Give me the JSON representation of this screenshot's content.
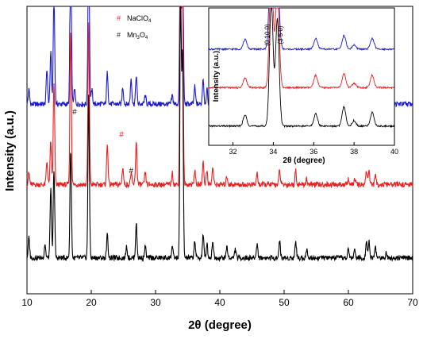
{
  "chart_data": [
    {
      "type": "line",
      "xlabel": "2θ (degree)",
      "ylabel": "Intensity (a.u.)",
      "xlim": [
        10,
        70
      ],
      "x_ticks": [
        "10",
        "20",
        "30",
        "40",
        "50",
        "60",
        "70"
      ],
      "y_ticks_shown": false,
      "grid": false,
      "legend": {
        "placement": "top-left",
        "entries": [
          {
            "marker": "#",
            "color": "#ff2020",
            "label": "NaClO",
            "sub": "4"
          },
          {
            "marker": "#",
            "color": "#222222",
            "label": "Mn",
            "sub1": "3",
            "mid": "O",
            "sub2": "4"
          }
        ]
      },
      "annotations": [
        {
          "text": "#",
          "x": 17.4,
          "y": 0.625,
          "color": "#222222"
        },
        {
          "text": "#",
          "x": 24.7,
          "y": 0.545,
          "color": "#ff2020"
        },
        {
          "text": "#",
          "x": 26.2,
          "y": 0.42,
          "color": "#222222"
        }
      ],
      "series": [
        {
          "color": "#1a1acc",
          "offset": 0.66,
          "peaks": [
            [
              10.3,
              0.05
            ],
            [
              13.1,
              0.12
            ],
            [
              13.7,
              0.18
            ],
            [
              14.2,
              0.38
            ],
            [
              16.8,
              0.62
            ],
            [
              17.4,
              0.05
            ],
            [
              19.6,
              0.62
            ],
            [
              20.1,
              0.05
            ],
            [
              22.5,
              0.11
            ],
            [
              24.9,
              0.06
            ],
            [
              26.2,
              0.09
            ],
            [
              27.0,
              0.1
            ],
            [
              28.4,
              0.03
            ],
            [
              32.6,
              0.03
            ],
            [
              33.9,
              1.0
            ],
            [
              34.2,
              0.7
            ],
            [
              36.1,
              0.06
            ],
            [
              37.4,
              0.09
            ],
            [
              38.0,
              0.05
            ],
            [
              38.9,
              0.07
            ],
            [
              41.1,
              0.03
            ],
            [
              42.4,
              0.02
            ],
            [
              45.8,
              0.04
            ],
            [
              49.3,
              0.05
            ],
            [
              51.8,
              0.05
            ],
            [
              53.5,
              0.02
            ],
            [
              60.0,
              0.02
            ],
            [
              61.0,
              0.03
            ],
            [
              62.8,
              0.05
            ],
            [
              63.2,
              0.06
            ],
            [
              64.2,
              0.03
            ],
            [
              65.9,
              0.02
            ]
          ]
        },
        {
          "color": "#e82020",
          "offset": 0.38,
          "peaks": [
            [
              10.3,
              0.04
            ],
            [
              13.1,
              0.08
            ],
            [
              13.7,
              0.15
            ],
            [
              14.2,
              0.35
            ],
            [
              16.8,
              0.54
            ],
            [
              19.6,
              0.56
            ],
            [
              22.5,
              0.14
            ],
            [
              24.9,
              0.06
            ],
            [
              26.2,
              0.04
            ],
            [
              27.0,
              0.15
            ],
            [
              28.4,
              0.04
            ],
            [
              32.6,
              0.04
            ],
            [
              33.9,
              0.96
            ],
            [
              34.2,
              0.65
            ],
            [
              36.1,
              0.05
            ],
            [
              37.4,
              0.08
            ],
            [
              38.0,
              0.05
            ],
            [
              38.9,
              0.06
            ],
            [
              41.1,
              0.03
            ],
            [
              45.8,
              0.04
            ],
            [
              49.3,
              0.05
            ],
            [
              51.8,
              0.05
            ],
            [
              53.5,
              0.02
            ],
            [
              60.0,
              0.02
            ],
            [
              61.0,
              0.02
            ],
            [
              62.8,
              0.05
            ],
            [
              63.2,
              0.05
            ],
            [
              64.2,
              0.03
            ]
          ]
        },
        {
          "color": "#000000",
          "offset": 0.125,
          "peaks": [
            [
              10.3,
              0.07
            ],
            [
              12.8,
              0.05
            ],
            [
              13.7,
              0.24
            ],
            [
              14.2,
              0.31
            ],
            [
              16.8,
              0.38
            ],
            [
              19.6,
              0.57
            ],
            [
              22.5,
              0.08
            ],
            [
              25.5,
              0.04
            ],
            [
              27.0,
              0.12
            ],
            [
              28.4,
              0.04
            ],
            [
              32.6,
              0.04
            ],
            [
              33.9,
              0.96
            ],
            [
              34.2,
              0.7
            ],
            [
              36.1,
              0.06
            ],
            [
              37.4,
              0.08
            ],
            [
              38.0,
              0.05
            ],
            [
              38.9,
              0.06
            ],
            [
              41.1,
              0.04
            ],
            [
              42.4,
              0.03
            ],
            [
              45.8,
              0.05
            ],
            [
              49.3,
              0.06
            ],
            [
              51.8,
              0.06
            ],
            [
              53.5,
              0.03
            ],
            [
              60.0,
              0.03
            ],
            [
              61.0,
              0.03
            ],
            [
              62.8,
              0.06
            ],
            [
              63.2,
              0.06
            ],
            [
              64.2,
              0.04
            ],
            [
              65.9,
              0.02
            ]
          ]
        }
      ]
    },
    {
      "type": "line",
      "inset": true,
      "xlabel": "2θ (degree)",
      "ylabel": "Intensity (a.u.)",
      "xlim": [
        30.8,
        40
      ],
      "x_ticks": [
        "32",
        "34",
        "36",
        "38",
        "40"
      ],
      "y_ticks_shown": false,
      "annotations": [
        {
          "text": "(0 10 0)",
          "x": 33.8,
          "color": "#000000"
        },
        {
          "text": "(3 5 0)",
          "x": 34.45,
          "color": "#000000"
        }
      ],
      "series": [
        {
          "color": "#1a1acc",
          "offset": 0.7,
          "peaks": [
            [
              32.6,
              0.07
            ],
            [
              33.9,
              0.9
            ],
            [
              34.2,
              0.55
            ],
            [
              36.1,
              0.08
            ],
            [
              37.5,
              0.1
            ],
            [
              38.0,
              0.03
            ],
            [
              38.9,
              0.08
            ]
          ]
        },
        {
          "color": "#e82020",
          "offset": 0.42,
          "peaks": [
            [
              32.6,
              0.07
            ],
            [
              33.9,
              0.9
            ],
            [
              34.2,
              0.75
            ],
            [
              36.1,
              0.09
            ],
            [
              37.5,
              0.1
            ],
            [
              38.0,
              0.03
            ],
            [
              38.9,
              0.09
            ]
          ]
        },
        {
          "color": "#000000",
          "offset": 0.14,
          "peaks": [
            [
              32.6,
              0.08
            ],
            [
              33.9,
              0.9
            ],
            [
              34.2,
              0.78
            ],
            [
              36.1,
              0.09
            ],
            [
              37.5,
              0.14
            ],
            [
              38.0,
              0.04
            ],
            [
              38.9,
              0.1
            ]
          ]
        }
      ]
    }
  ]
}
